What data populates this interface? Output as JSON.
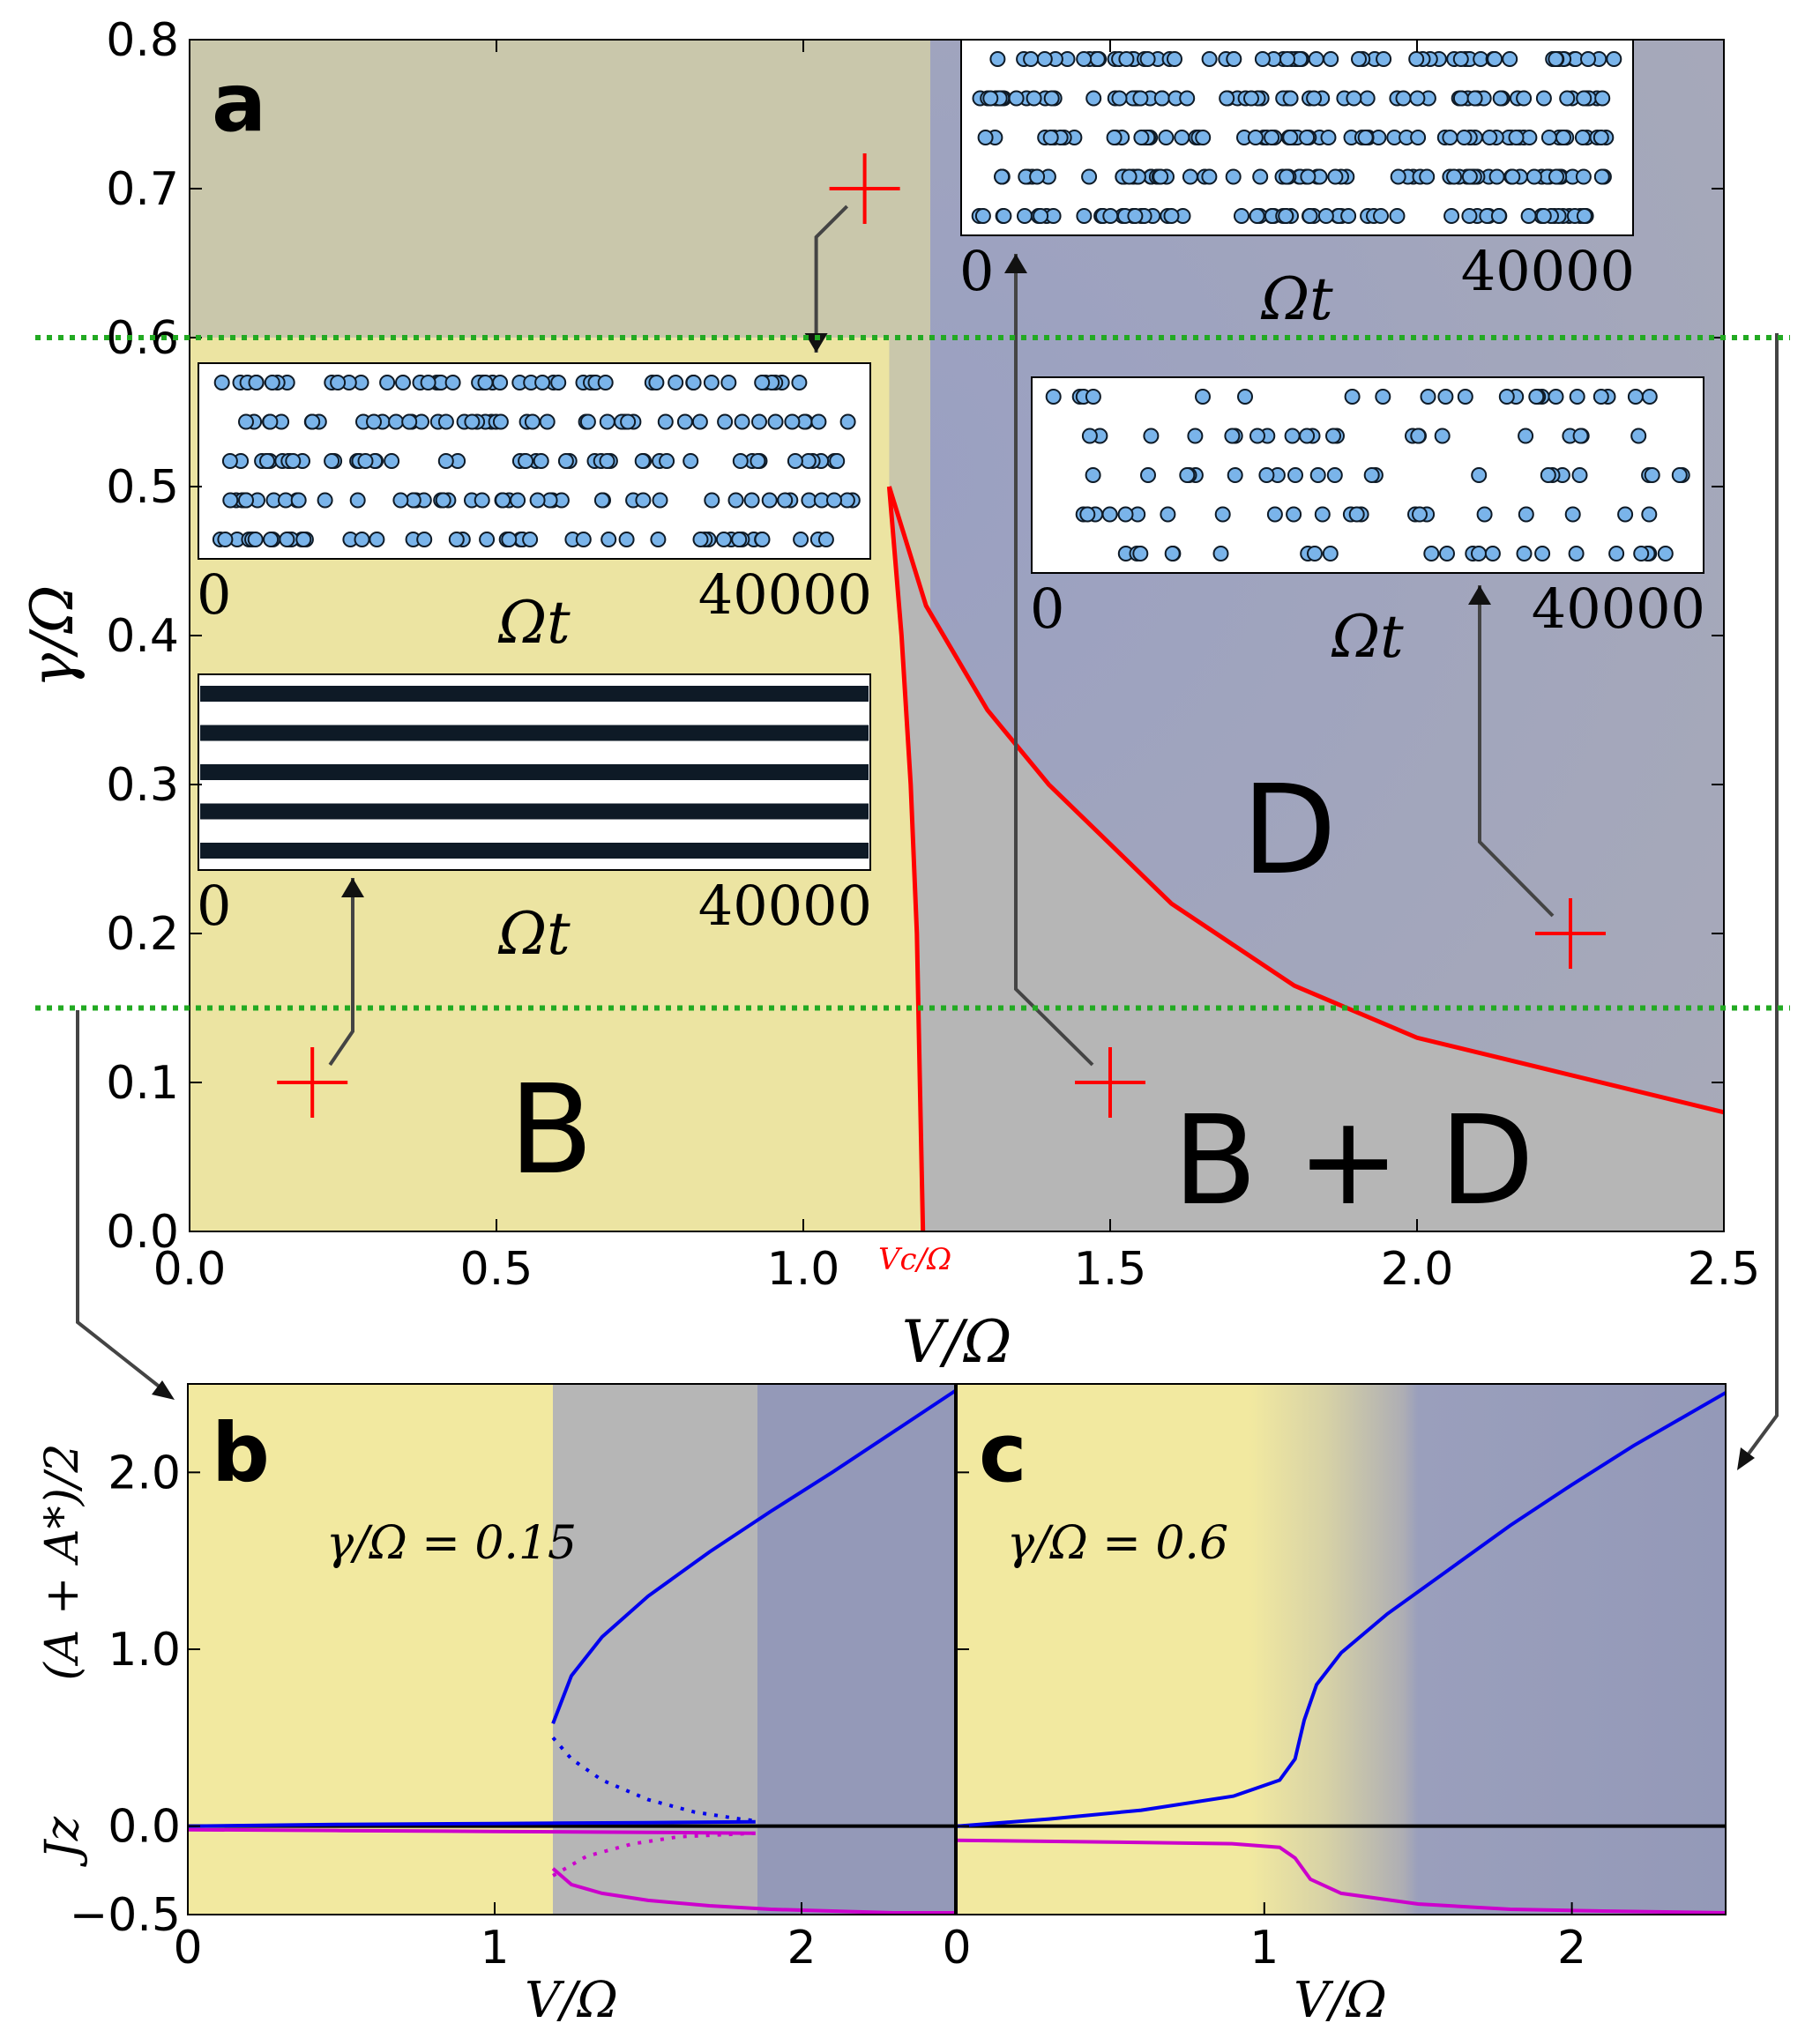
{
  "chart_data": [
    {
      "panel": "a",
      "type": "line",
      "title": "",
      "xlabel": "V/Ω",
      "ylabel": "γ/Ω",
      "xlim": [
        0.0,
        2.5
      ],
      "ylim": [
        0.0,
        0.8
      ],
      "xticks": [
        "0.0",
        "0.5",
        "1.0",
        "1.5",
        "2.0",
        "2.5"
      ],
      "xtick_values": [
        0.0,
        0.5,
        1.0,
        1.5,
        2.0,
        2.5
      ],
      "yticks": [
        "0.0",
        "0.1",
        "0.2",
        "0.3",
        "0.4",
        "0.5",
        "0.6",
        "0.7",
        "0.8"
      ],
      "ytick_values": [
        0.0,
        0.1,
        0.2,
        0.3,
        0.4,
        0.5,
        0.6,
        0.7,
        0.8
      ],
      "critical_label": "Vc/Ω",
      "critical_value": 1.19,
      "regions": [
        {
          "label": "B",
          "x": 0.6,
          "y": 0.07
        },
        {
          "label": "D",
          "x": 1.8,
          "y": 0.26
        },
        {
          "label": "B + D",
          "x": 1.9,
          "y": 0.04
        }
      ],
      "series": [
        {
          "name": "left boundary",
          "color": "#ff0000",
          "x": [
            1.14,
            1.16,
            1.175,
            1.185,
            1.19,
            1.195
          ],
          "y": [
            0.5,
            0.4,
            0.3,
            0.2,
            0.1,
            0.0
          ]
        },
        {
          "name": "right boundary",
          "color": "#ff0000",
          "x": [
            1.14,
            1.2,
            1.3,
            1.4,
            1.5,
            1.6,
            1.8,
            2.0,
            2.2,
            2.5
          ],
          "y": [
            0.5,
            0.42,
            0.35,
            0.3,
            0.26,
            0.22,
            0.165,
            0.13,
            0.11,
            0.08
          ]
        }
      ],
      "reference_lines": [
        {
          "y": 0.6,
          "color": "#22aa22",
          "style": "dotted"
        },
        {
          "y": 0.15,
          "color": "#22aa22",
          "style": "dotted"
        }
      ],
      "markers": [
        {
          "x": 0.2,
          "y": 0.1
        },
        {
          "x": 1.1,
          "y": 0.7
        },
        {
          "x": 1.5,
          "y": 0.1
        },
        {
          "x": 2.25,
          "y": 0.2
        }
      ],
      "insets": [
        {
          "position": "top-right",
          "xlabel": "Ωt",
          "x_start": "0",
          "x_end": "40000",
          "style": "dense-dots"
        },
        {
          "position": "middle-left",
          "xlabel": "Ωt",
          "x_start": "0",
          "x_end": "40000",
          "style": "dots"
        },
        {
          "position": "middle-right",
          "xlabel": "Ωt",
          "x_start": "0",
          "x_end": "40000",
          "style": "sparse-dots"
        },
        {
          "position": "lower-left",
          "xlabel": "Ωt",
          "x_start": "0",
          "x_end": "40000",
          "style": "bands"
        }
      ]
    },
    {
      "panel": "b",
      "type": "line",
      "title": "",
      "annotation": "γ/Ω = 0.15",
      "xlabel": "V/Ω",
      "ylabel": "Jz   (A + A*)/2",
      "xlim": [
        0.0,
        2.5
      ],
      "ylim": [
        -0.5,
        2.5
      ],
      "xticks": [
        "0",
        "1",
        "2"
      ],
      "xtick_values": [
        0,
        1,
        2
      ],
      "yticks": [
        "−0.5",
        "0.0",
        "1.0",
        "2.0"
      ],
      "ytick_values": [
        -0.5,
        0.0,
        1.0,
        2.0
      ],
      "series": [
        {
          "name": "(A+A*)/2 upper stable",
          "color": "#0000ee",
          "style": "solid",
          "x": [
            1.19,
            1.25,
            1.35,
            1.5,
            1.7,
            1.9,
            2.1,
            2.3,
            2.5
          ],
          "y": [
            0.58,
            0.85,
            1.07,
            1.3,
            1.55,
            1.78,
            2.0,
            2.23,
            2.46
          ]
        },
        {
          "name": "(A+A*)/2 unstable",
          "color": "#0000ee",
          "style": "dotted",
          "x": [
            1.19,
            1.25,
            1.35,
            1.5,
            1.65,
            1.8,
            1.85
          ],
          "y": [
            0.5,
            0.38,
            0.26,
            0.15,
            0.08,
            0.04,
            0.03
          ]
        },
        {
          "name": "(A+A*)/2 lower stable",
          "color": "#0000ee",
          "style": "solid",
          "x": [
            0.0,
            0.5,
            1.0,
            1.5,
            1.85
          ],
          "y": [
            0.0,
            0.01,
            0.015,
            0.02,
            0.025
          ]
        },
        {
          "name": "Jz upper",
          "color": "#cc00cc",
          "style": "solid",
          "x": [
            0.0,
            0.5,
            1.0,
            1.5,
            1.85
          ],
          "y": [
            -0.02,
            -0.025,
            -0.03,
            -0.035,
            -0.04
          ]
        },
        {
          "name": "Jz unstable",
          "color": "#cc00cc",
          "style": "dotted",
          "x": [
            1.19,
            1.3,
            1.45,
            1.6,
            1.85
          ],
          "y": [
            -0.28,
            -0.17,
            -0.1,
            -0.06,
            -0.04
          ]
        },
        {
          "name": "Jz lower stable",
          "color": "#cc00cc",
          "style": "solid",
          "x": [
            1.19,
            1.25,
            1.35,
            1.5,
            1.7,
            1.9,
            2.1,
            2.3,
            2.5
          ],
          "y": [
            -0.24,
            -0.33,
            -0.38,
            -0.42,
            -0.45,
            -0.47,
            -0.48,
            -0.49,
            -0.49
          ]
        }
      ]
    },
    {
      "panel": "c",
      "type": "line",
      "title": "",
      "annotation": "γ/Ω = 0.6",
      "xlabel": "V/Ω",
      "xlim": [
        0.0,
        2.5
      ],
      "ylim": [
        -0.5,
        2.5
      ],
      "xticks": [
        "0",
        "1",
        "2"
      ],
      "xtick_values": [
        0,
        1,
        2
      ],
      "series": [
        {
          "name": "(A+A*)/2",
          "color": "#0000ee",
          "style": "solid",
          "x": [
            0.0,
            0.3,
            0.6,
            0.9,
            1.05,
            1.1,
            1.13,
            1.17,
            1.25,
            1.4,
            1.6,
            1.8,
            2.0,
            2.2,
            2.5
          ],
          "y": [
            0.0,
            0.04,
            0.09,
            0.17,
            0.26,
            0.38,
            0.6,
            0.8,
            0.98,
            1.2,
            1.45,
            1.7,
            1.93,
            2.15,
            2.45
          ]
        },
        {
          "name": "Jz",
          "color": "#cc00cc",
          "style": "solid",
          "x": [
            0.0,
            0.5,
            0.9,
            1.05,
            1.1,
            1.15,
            1.25,
            1.5,
            1.8,
            2.1,
            2.5
          ],
          "y": [
            -0.08,
            -0.09,
            -0.1,
            -0.12,
            -0.18,
            -0.3,
            -0.38,
            -0.44,
            -0.47,
            -0.48,
            -0.49
          ]
        }
      ]
    }
  ],
  "text": {
    "panel_a": "a",
    "panel_b": "b",
    "panel_c": "c",
    "xlabel_a": "V/Ω",
    "ylabel_a": "γ/Ω",
    "xlabel_bottom": "V/Ω",
    "ylabel_b": "(A + A*)/2",
    "ylabel_b_jz": "Jz",
    "critical": "Vc/Ω",
    "annotation_b": "γ/Ω = 0.15",
    "annotation_c": "γ/Ω = 0.6",
    "region_b": "B",
    "region_d": "D",
    "region_bd": "B + D",
    "inset_xlabel": "Ωt",
    "inset_start": "0",
    "inset_end": "40000"
  },
  "colors": {
    "boundary": "#ff0000",
    "reference": "#22aa22",
    "blue_curve": "#0000ee",
    "magenta_curve": "#cc00cc",
    "bright_phase": "#f2e9a0",
    "dark_phase": "#9499b8",
    "coexist_phase": "#b6b6b6",
    "dot_fill": "#7ab4ea"
  }
}
